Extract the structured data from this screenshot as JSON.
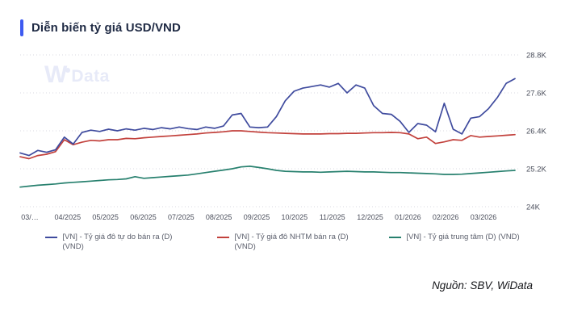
{
  "header": {
    "title": "Diễn biến tỷ giá USD/VND"
  },
  "watermark": {
    "w": "W",
    "rest": "Data"
  },
  "source": {
    "text": "Nguồn: SBV, WiData"
  },
  "colors": {
    "accent": "#3D5AF1",
    "title_text": "#1F2A44",
    "grid": "#D9D9E0",
    "tick_text": "#4B4F5C",
    "watermark": "#E7EAF8",
    "series_free_market": "#3F4B9E",
    "series_bank": "#C2413C",
    "series_central": "#27806E"
  },
  "legend": {
    "items": [
      {
        "name": "free-market",
        "label": "[VN] - Tỷ giá đô tự do bán ra (D) (VND)",
        "color": "#3F4B9E"
      },
      {
        "name": "bank",
        "label": "[VN] - Tỷ giá đô NHTM bán ra (D) (VND)",
        "color": "#C2413C"
      },
      {
        "name": "central",
        "label": "[VN] - Tỷ giá trung tâm (D) (VND)",
        "color": "#27806E"
      }
    ]
  },
  "chart_data": {
    "type": "line",
    "title": "Diễn biến tỷ giá USD/VND",
    "unit": "VND",
    "interval": "weekly samples, Mar 2025 – Mar 2026",
    "grid": "horizontal dotted",
    "legend_position": "bottom",
    "ylim": [
      24000,
      28800
    ],
    "y_ticks": [
      {
        "label": "24K",
        "value": 24000
      },
      {
        "label": "25.2K",
        "value": 25200
      },
      {
        "label": "26.4K",
        "value": 26400
      },
      {
        "label": "27.6K",
        "value": 27600
      },
      {
        "label": "28.8K",
        "value": 28800
      }
    ],
    "x_tick_labels": [
      "03/…",
      "04/2025",
      "05/2025",
      "06/2025",
      "07/2025",
      "08/2025",
      "09/2025",
      "10/2025",
      "11/2025",
      "12/2025",
      "01/2026",
      "02/2026",
      "03/2026"
    ],
    "series": [
      {
        "name": "[VN] - Tỷ giá đô tự do bán ra (D) (VND)",
        "color": "#3F4B9E",
        "values": [
          25700,
          25620,
          25780,
          25720,
          25800,
          26200,
          25980,
          26350,
          26420,
          26380,
          26450,
          26400,
          26460,
          26420,
          26480,
          26440,
          26500,
          26460,
          26520,
          26470,
          26440,
          26520,
          26480,
          26550,
          26900,
          26950,
          26520,
          26500,
          26520,
          26850,
          27350,
          27650,
          27750,
          27800,
          27850,
          27780,
          27900,
          27600,
          27850,
          27750,
          27200,
          26950,
          26920,
          26700,
          26350,
          26630,
          26580,
          26370,
          27270,
          26450,
          26300,
          26800,
          26850,
          27100,
          27450,
          27900,
          28050
        ]
      },
      {
        "name": "[VN] - Tỷ giá đô NHTM bán ra (D) (VND)",
        "color": "#C2413C",
        "values": [
          25580,
          25520,
          25620,
          25660,
          25740,
          26120,
          25960,
          26040,
          26100,
          26080,
          26120,
          26120,
          26160,
          26150,
          26180,
          26200,
          26220,
          26240,
          26260,
          26280,
          26300,
          26330,
          26350,
          26370,
          26400,
          26400,
          26380,
          26360,
          26340,
          26330,
          26320,
          26310,
          26300,
          26300,
          26300,
          26310,
          26310,
          26320,
          26320,
          26330,
          26340,
          26340,
          26350,
          26340,
          26300,
          26150,
          26200,
          26000,
          26050,
          26120,
          26100,
          26250,
          26200,
          26220,
          26240,
          26260,
          26280
        ]
      },
      {
        "name": "[VN] - Tỷ giá trung tâm (D) (VND)",
        "color": "#27806E",
        "values": [
          24620,
          24650,
          24680,
          24700,
          24720,
          24750,
          24770,
          24790,
          24810,
          24830,
          24850,
          24860,
          24880,
          24950,
          24900,
          24920,
          24940,
          24960,
          24980,
          25000,
          25040,
          25080,
          25120,
          25160,
          25200,
          25260,
          25280,
          25240,
          25200,
          25150,
          25120,
          25110,
          25100,
          25100,
          25090,
          25100,
          25110,
          25120,
          25110,
          25100,
          25100,
          25090,
          25080,
          25080,
          25070,
          25060,
          25050,
          25040,
          25020,
          25020,
          25030,
          25050,
          25070,
          25090,
          25110,
          25130,
          25150
        ]
      }
    ]
  }
}
